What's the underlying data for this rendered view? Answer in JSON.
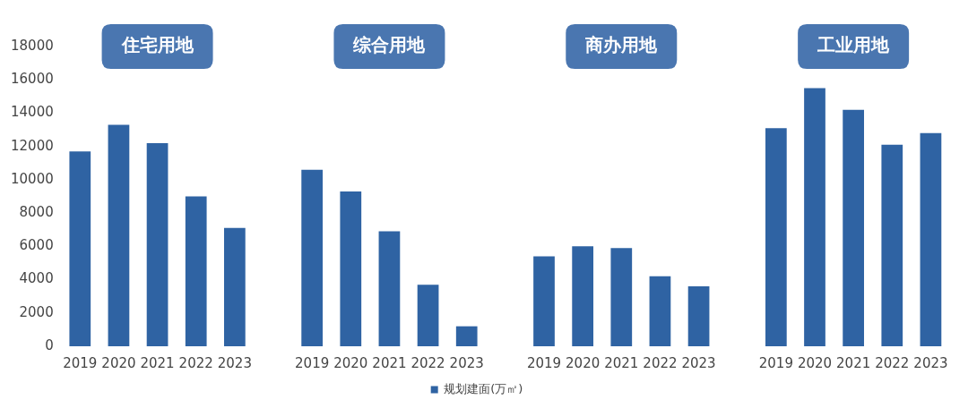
{
  "chart_data": {
    "type": "bar",
    "categories": [
      "2019",
      "2020",
      "2021",
      "2022",
      "2023",
      null,
      "2019",
      "2020",
      "2021",
      "2022",
      "2023",
      null,
      "2019",
      "2020",
      "2021",
      "2022",
      "2023",
      null,
      "2019",
      "2020",
      "2021",
      "2022",
      "2023"
    ],
    "series": [
      {
        "name": "规划建面(万㎡)",
        "color": "#2f63a3",
        "values": [
          11700,
          13300,
          12200,
          9000,
          7100,
          null,
          10600,
          9300,
          6900,
          3700,
          1200,
          null,
          5400,
          6000,
          5900,
          4200,
          3600,
          null,
          13100,
          15500,
          14200,
          12100,
          12800
        ]
      }
    ],
    "ylim": [
      0,
      18000
    ],
    "yticks": [
      0,
      2000,
      4000,
      6000,
      8000,
      10000,
      12000,
      14000,
      16000,
      18000
    ],
    "legend": "bottom",
    "annotations": [
      "住宅用地",
      "综合用地",
      "商办用地",
      "工业用地"
    ]
  }
}
